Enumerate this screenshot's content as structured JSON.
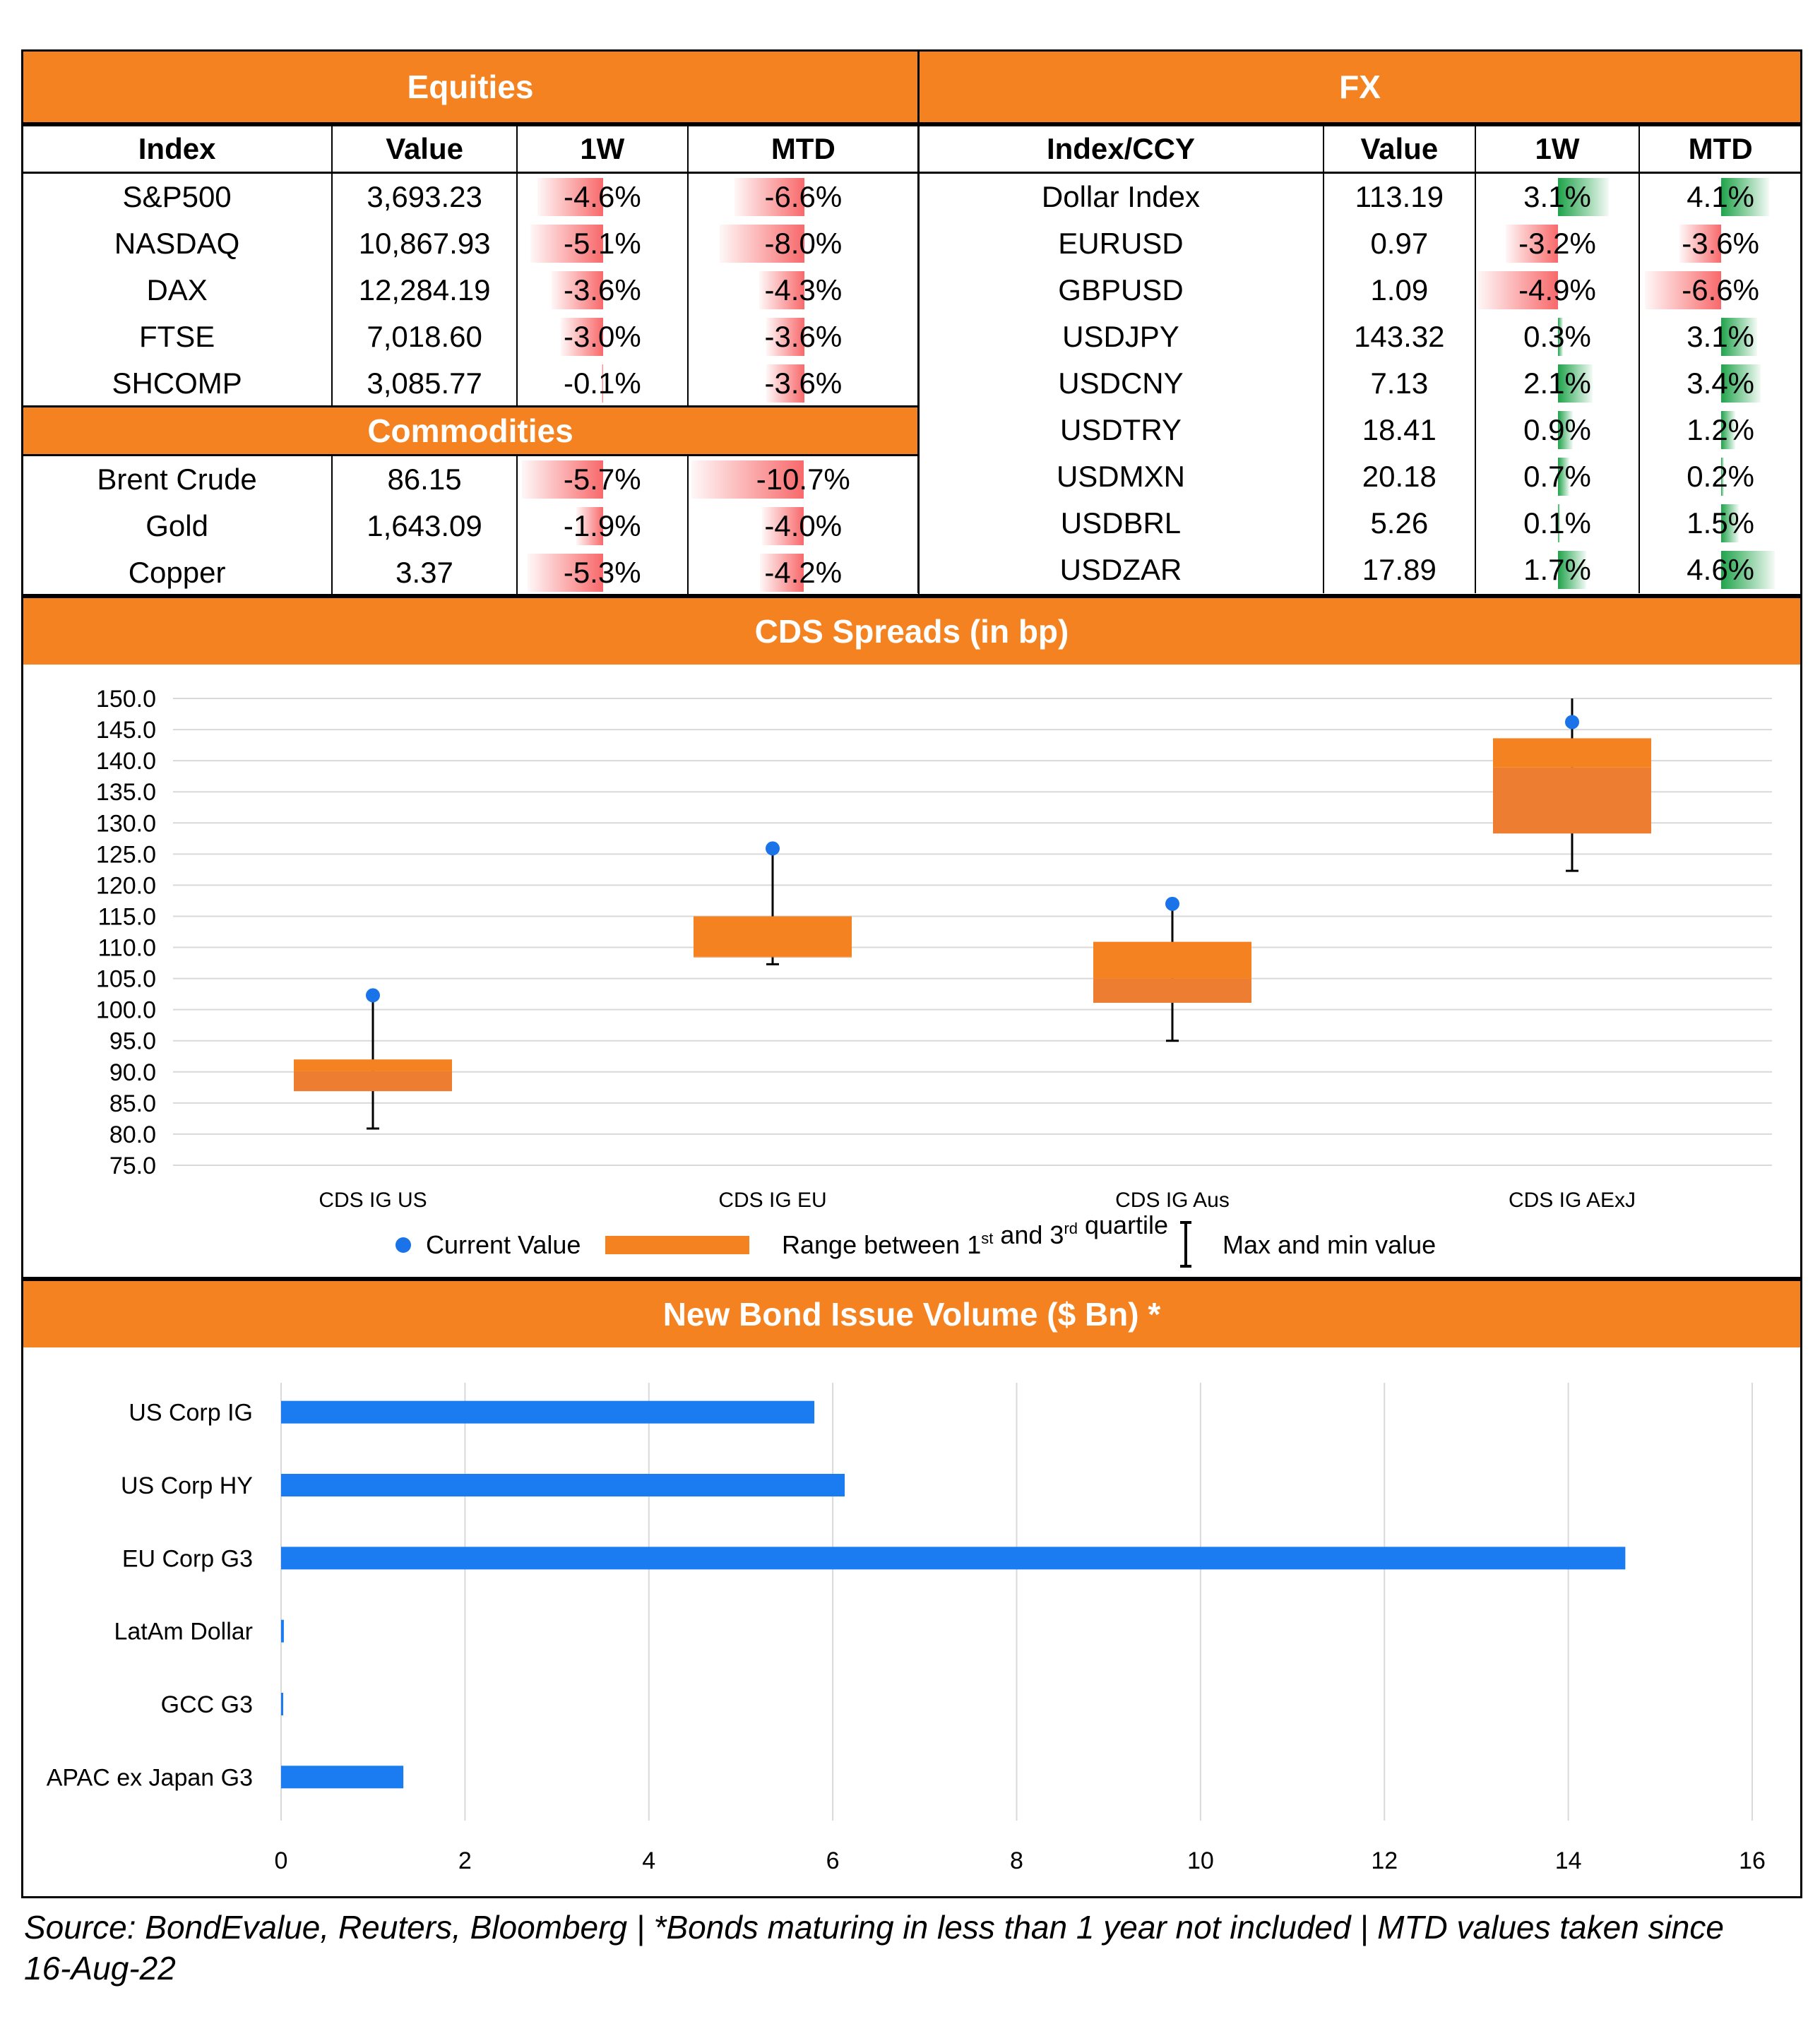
{
  "equities": {
    "title": "Equities",
    "headers": [
      "Index",
      "Value",
      "1W",
      "MTD"
    ],
    "rows": [
      {
        "name": "S&P500",
        "value": "3,693.23",
        "w1": "-4.6%",
        "mtd": "-6.6%"
      },
      {
        "name": "NASDAQ",
        "value": "10,867.93",
        "w1": "-5.1%",
        "mtd": "-8.0%"
      },
      {
        "name": "DAX",
        "value": "12,284.19",
        "w1": "-3.6%",
        "mtd": "-4.3%"
      },
      {
        "name": "FTSE",
        "value": "7,018.60",
        "w1": "-3.0%",
        "mtd": "-3.6%"
      },
      {
        "name": "SHCOMP",
        "value": "3,085.77",
        "w1": "-0.1%",
        "mtd": "-3.6%"
      }
    ]
  },
  "commodities": {
    "title": "Commodities",
    "rows": [
      {
        "name": "Brent Crude",
        "value": "86.15",
        "w1": "-5.7%",
        "mtd": "-10.7%"
      },
      {
        "name": "Gold",
        "value": "1,643.09",
        "w1": "-1.9%",
        "mtd": "-4.0%"
      },
      {
        "name": "Copper",
        "value": "3.37",
        "w1": "-5.3%",
        "mtd": "-4.2%"
      }
    ]
  },
  "fx": {
    "title": "FX",
    "headers": [
      "Index/CCY",
      "Value",
      "1W",
      "MTD"
    ],
    "rows": [
      {
        "name": "Dollar Index",
        "value": "113.19",
        "w1": "3.1%",
        "mtd": "4.1%"
      },
      {
        "name": "EURUSD",
        "value": "0.97",
        "w1": "-3.2%",
        "mtd": "-3.6%"
      },
      {
        "name": "GBPUSD",
        "value": "1.09",
        "w1": "-4.9%",
        "mtd": "-6.6%"
      },
      {
        "name": "USDJPY",
        "value": "143.32",
        "w1": "0.3%",
        "mtd": "3.1%"
      },
      {
        "name": "USDCNY",
        "value": "7.13",
        "w1": "2.1%",
        "mtd": "3.4%"
      },
      {
        "name": "USDTRY",
        "value": "18.41",
        "w1": "0.9%",
        "mtd": "1.2%"
      },
      {
        "name": "USDMXN",
        "value": "20.18",
        "w1": "0.7%",
        "mtd": "0.2%"
      },
      {
        "name": "USDBRL",
        "value": "5.26",
        "w1": "0.1%",
        "mtd": "1.5%"
      },
      {
        "name": "USDZAR",
        "value": "17.89",
        "w1": "1.7%",
        "mtd": "4.6%"
      }
    ]
  },
  "colors": {
    "accent": "#f58220",
    "positive": "#1fa34a",
    "negative": "#f8696b",
    "point": "#1a73e8",
    "bar": "#1a7cf0",
    "box": "#ed7d31"
  },
  "chart_data": [
    {
      "type": "box",
      "title": "CDS Spreads (in bp)",
      "categories": [
        "CDS IG US",
        "CDS IG EU",
        "CDS IG Aus",
        "CDS IG AExJ"
      ],
      "current": [
        102.3,
        125.9,
        117.0,
        146.2
      ],
      "q1": [
        86.9,
        108.4,
        101.1,
        128.3
      ],
      "median": [
        90.1,
        108.5,
        105.0,
        138.9
      ],
      "q3": [
        92.0,
        115.0,
        110.9,
        143.6
      ],
      "min": [
        80.9,
        107.3,
        95.0,
        122.3
      ],
      "max": [
        102.3,
        125.9,
        117.0,
        150.0
      ],
      "ylim": [
        75.0,
        150.0
      ],
      "yticks": [
        "75.0",
        "80.0",
        "85.0",
        "90.0",
        "95.0",
        "100.0",
        "105.0",
        "110.0",
        "115.0",
        "120.0",
        "125.0",
        "130.0",
        "135.0",
        "140.0",
        "145.0",
        "150.0"
      ],
      "legend": {
        "current": "Current Value",
        "range_pre": "Range between 1",
        "range_sup1": "st",
        "range_mid": " and 3",
        "range_sup2": "rd",
        "range_post": " quartile",
        "maxmin": "Max and min value"
      },
      "grid": true
    },
    {
      "type": "bar",
      "orientation": "horizontal",
      "title": "New Bond Issue Volume ($ Bn) *",
      "categories": [
        "US Corp IG",
        "US Corp HY",
        "EU Corp G3",
        "LatAm Dollar",
        "GCC G3",
        "APAC ex Japan G3"
      ],
      "values": [
        5.8,
        6.13,
        14.62,
        0.03,
        0.02,
        1.33
      ],
      "xlim": [
        0,
        16
      ],
      "xticks": [
        "0",
        "2",
        "4",
        "6",
        "8",
        "10",
        "12",
        "14",
        "16"
      ],
      "grid": true
    }
  ],
  "source": "Source: BondEvalue, Reuters, Bloomberg | *Bonds maturing in less than 1 year not included | MTD values taken since 16-Aug-22"
}
